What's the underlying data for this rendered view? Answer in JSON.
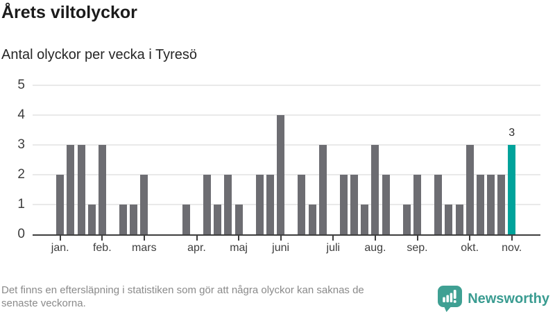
{
  "header": {
    "title": "Årets viltolyckor",
    "subtitle": "Antal olyckor per vecka i Tyresö"
  },
  "chart_data": {
    "type": "bar",
    "title": "Årets viltolyckor",
    "subtitle": "Antal olyckor per vecka i Tyresö",
    "x_unit": "vecka (jan–nov), en stapel per vecka, veckor utan olyckor saknar stapel",
    "values": [
      2,
      3,
      3,
      1,
      3,
      0,
      1,
      1,
      2,
      0,
      0,
      0,
      1,
      0,
      2,
      1,
      2,
      1,
      0,
      2,
      2,
      4,
      0,
      2,
      1,
      3,
      0,
      2,
      2,
      1,
      3,
      2,
      0,
      1,
      2,
      0,
      2,
      1,
      1,
      3,
      2,
      2,
      2,
      3
    ],
    "highlight": {
      "index": 43,
      "label": "3",
      "color": "#00a39b"
    },
    "bar_color": "#6d6d72",
    "grid": true,
    "gridline_color": "#e9e9e9",
    "axis_color": "#3d3d3d",
    "ylim": [
      0,
      5
    ],
    "yticks": [
      0,
      1,
      2,
      3,
      4,
      5
    ],
    "month_ticks": [
      {
        "label": "jan.",
        "slot": 0
      },
      {
        "label": "feb.",
        "slot": 4
      },
      {
        "label": "mars",
        "slot": 8
      },
      {
        "label": "apr.",
        "slot": 13
      },
      {
        "label": "maj",
        "slot": 17
      },
      {
        "label": "juni",
        "slot": 21
      },
      {
        "label": "juli",
        "slot": 26
      },
      {
        "label": "aug.",
        "slot": 30
      },
      {
        "label": "sep.",
        "slot": 34
      },
      {
        "label": "okt.",
        "slot": 39
      },
      {
        "label": "nov.",
        "slot": 43
      }
    ],
    "legend": "none"
  },
  "footer": {
    "disclaimer_line1": "Det finns en eftersläpning i statistiken som gör att några olyckor kan saknas de",
    "disclaimer_line2": "senaste veckorna.",
    "brand": {
      "name": "Newsworthy",
      "color": "#3a9c91",
      "icon_color": "#3fa093",
      "icon": "newsworthy-chart-bubble-icon"
    }
  }
}
